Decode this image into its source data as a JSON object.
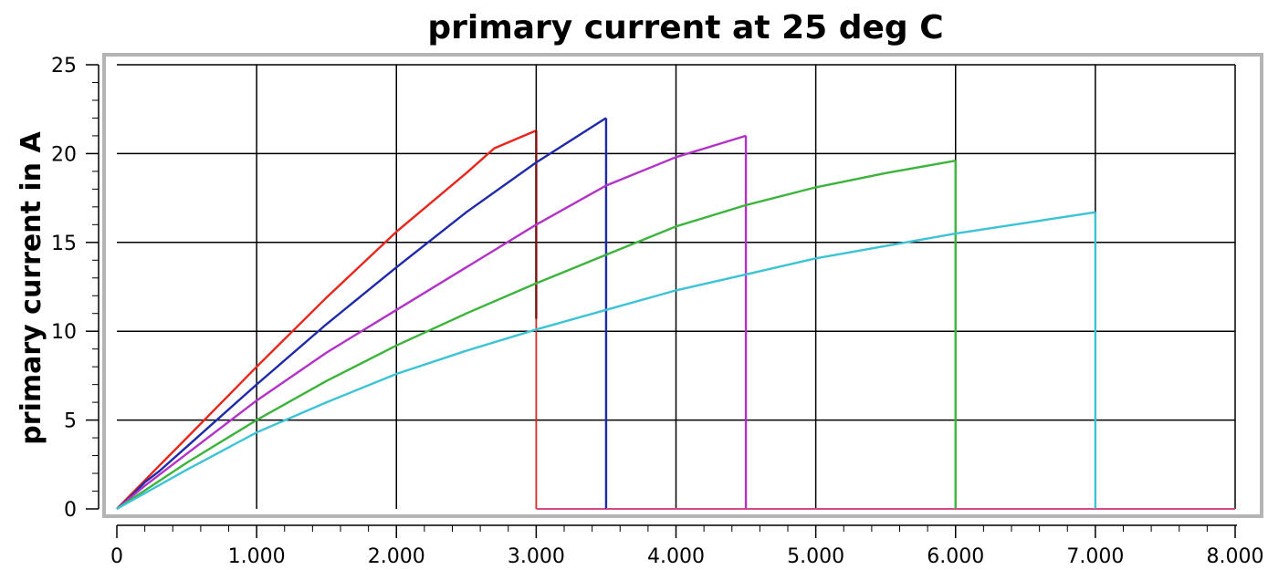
{
  "chart_data": {
    "type": "line",
    "title": "primary current at 25 deg C",
    "xlabel": "",
    "ylabel": "primary current in A",
    "xlim": [
      0,
      8000
    ],
    "ylim": [
      0,
      25
    ],
    "x_ticks": [
      0,
      1000,
      2000,
      3000,
      4000,
      5000,
      6000,
      7000,
      8000
    ],
    "x_tick_labels": [
      "0",
      "1.000",
      "2.000",
      "3.000",
      "4.000",
      "5.000",
      "6.000",
      "7.000",
      "8.000"
    ],
    "y_ticks": [
      0,
      5,
      10,
      15,
      20,
      25
    ],
    "y_tick_labels": [
      "0",
      "5",
      "10",
      "15",
      "20",
      "25"
    ],
    "grid": true,
    "legend": "none",
    "series": [
      {
        "color": "#e8261c",
        "drop_color": "#7a1010",
        "points": [
          [
            0,
            0
          ],
          [
            100,
            0.8
          ],
          [
            200,
            1.6
          ],
          [
            300,
            2.4
          ],
          [
            500,
            4.0
          ],
          [
            1000,
            8.0
          ],
          [
            1500,
            11.9
          ],
          [
            2000,
            15.6
          ],
          [
            2500,
            18.9
          ],
          [
            2700,
            20.3
          ],
          [
            3000,
            21.3
          ]
        ],
        "cutoff": 3000,
        "drop_to": 10.7
      },
      {
        "color": "#1f2aa8",
        "points": [
          [
            0,
            0
          ],
          [
            100,
            0.7
          ],
          [
            200,
            1.5
          ],
          [
            300,
            2.1
          ],
          [
            500,
            3.5
          ],
          [
            1000,
            7.0
          ],
          [
            1500,
            10.4
          ],
          [
            2000,
            13.6
          ],
          [
            2500,
            16.7
          ],
          [
            3000,
            19.5
          ],
          [
            3500,
            22.0
          ]
        ],
        "cutoff": 3500,
        "drop_to": 0
      },
      {
        "color": "#b232c8",
        "points": [
          [
            0,
            0
          ],
          [
            200,
            1.3
          ],
          [
            500,
            3.1
          ],
          [
            1000,
            6.1
          ],
          [
            1500,
            8.8
          ],
          [
            2000,
            11.2
          ],
          [
            2500,
            13.6
          ],
          [
            3000,
            16.0
          ],
          [
            3500,
            18.2
          ],
          [
            4000,
            19.8
          ],
          [
            4500,
            21.0
          ]
        ],
        "cutoff": 4500,
        "drop_to": 0
      },
      {
        "color": "#3cb43c",
        "points": [
          [
            0,
            0
          ],
          [
            500,
            2.6
          ],
          [
            1000,
            5.0
          ],
          [
            1500,
            7.2
          ],
          [
            2000,
            9.2
          ],
          [
            2500,
            11.0
          ],
          [
            3000,
            12.7
          ],
          [
            3500,
            14.3
          ],
          [
            4000,
            15.9
          ],
          [
            4500,
            17.1
          ],
          [
            5000,
            18.1
          ],
          [
            5500,
            18.9
          ],
          [
            6000,
            19.6
          ]
        ],
        "cutoff": 6000,
        "drop_to": 0
      },
      {
        "color": "#3cc3d6",
        "points": [
          [
            0,
            0
          ],
          [
            500,
            2.2
          ],
          [
            1000,
            4.3
          ],
          [
            1500,
            6.0
          ],
          [
            2000,
            7.6
          ],
          [
            2500,
            8.9
          ],
          [
            3000,
            10.1
          ],
          [
            3500,
            11.2
          ],
          [
            4000,
            12.3
          ],
          [
            4500,
            13.2
          ],
          [
            5000,
            14.1
          ],
          [
            5500,
            14.8
          ],
          [
            6000,
            15.5
          ],
          [
            6500,
            16.1
          ],
          [
            7000,
            16.7
          ]
        ],
        "cutoff": 7000,
        "drop_to": 0
      }
    ]
  }
}
